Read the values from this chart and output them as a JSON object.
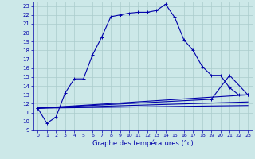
{
  "xlabel": "Graphe des températures (°c)",
  "bg_color": "#cce8e8",
  "grid_color": "#aacccc",
  "line_color": "#0000aa",
  "xlim": [
    -0.5,
    23.5
  ],
  "ylim": [
    9,
    23.5
  ],
  "xticks": [
    0,
    1,
    2,
    3,
    4,
    5,
    6,
    7,
    8,
    9,
    10,
    11,
    12,
    13,
    14,
    15,
    16,
    17,
    18,
    19,
    20,
    21,
    22,
    23
  ],
  "yticks": [
    9,
    10,
    11,
    12,
    13,
    14,
    15,
    16,
    17,
    18,
    19,
    20,
    21,
    22,
    23
  ],
  "line1_x": [
    0,
    1,
    2,
    3,
    4,
    5,
    6,
    7,
    8,
    9,
    10,
    11,
    12,
    13,
    14,
    15,
    16,
    17,
    18,
    19,
    20,
    21,
    22,
    23
  ],
  "line1_y": [
    11.5,
    9.8,
    10.5,
    13.2,
    14.8,
    14.8,
    17.5,
    19.5,
    21.8,
    22.0,
    22.2,
    22.3,
    22.3,
    22.5,
    23.2,
    21.7,
    19.2,
    18.0,
    16.2,
    15.2,
    15.2,
    13.8,
    13.0,
    13.0
  ],
  "line2_x": [
    0,
    23
  ],
  "line2_y": [
    11.5,
    13.0
  ],
  "line3_x": [
    0,
    23
  ],
  "line3_y": [
    11.5,
    12.2
  ],
  "line4_x": [
    0,
    23
  ],
  "line4_y": [
    11.5,
    11.8
  ],
  "line5_x": [
    0,
    19,
    21,
    23
  ],
  "line5_y": [
    11.5,
    12.5,
    15.2,
    13.0
  ]
}
